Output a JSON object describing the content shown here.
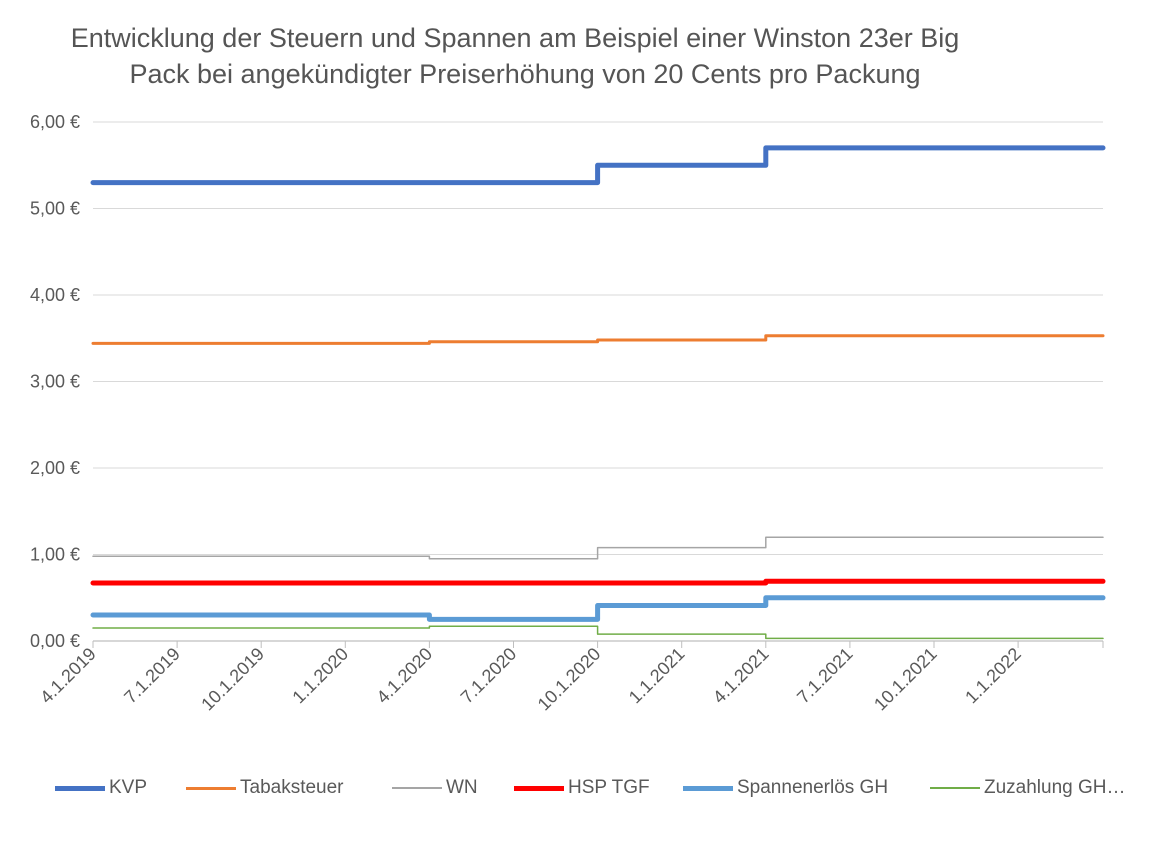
{
  "chart_data": {
    "type": "line",
    "step": true,
    "title_lines": [
      "Entwicklung der Steuern und Spannen am Beispiel einer Winston 23er Big",
      "Pack bei angekündigter Preiserhöhung von 20 Cents pro Packung"
    ],
    "ylim": [
      0,
      6
    ],
    "y_ticks": [
      "0,00 €",
      "1,00 €",
      "2,00 €",
      "3,00 €",
      "4,00 €",
      "5,00 €",
      "6,00 €"
    ],
    "x_ticks": [
      "4.1.2019",
      "7.1.2019",
      "10.1.2019",
      "1.1.2020",
      "4.1.2020",
      "7.1.2020",
      "10.1.2020",
      "1.1.2021",
      "4.1.2021",
      "7.1.2021",
      "10.1.2021",
      "1.1.2022"
    ],
    "grid": true,
    "legend_position": "bottom",
    "series": [
      {
        "name": "KVP",
        "color": "#4472C4",
        "weight": "thick",
        "points": [
          [
            "4.1.2019",
            5.3
          ],
          [
            "10.1.2020",
            5.3
          ],
          [
            "10.1.2020",
            5.5
          ],
          [
            "4.1.2021",
            5.5
          ],
          [
            "4.1.2021",
            5.7
          ],
          [
            "end",
            5.7
          ]
        ]
      },
      {
        "name": "Tabaksteuer",
        "color": "#ED7D31",
        "weight": "medium",
        "points": [
          [
            "4.1.2019",
            3.44
          ],
          [
            "4.1.2020",
            3.44
          ],
          [
            "4.1.2020",
            3.46
          ],
          [
            "10.1.2020",
            3.46
          ],
          [
            "10.1.2020",
            3.48
          ],
          [
            "4.1.2021",
            3.48
          ],
          [
            "4.1.2021",
            3.53
          ],
          [
            "end",
            3.53
          ]
        ]
      },
      {
        "name": "WN",
        "color": "#A5A5A5",
        "weight": "thin",
        "points": [
          [
            "4.1.2019",
            0.98
          ],
          [
            "4.1.2020",
            0.98
          ],
          [
            "4.1.2020",
            0.95
          ],
          [
            "10.1.2020",
            0.95
          ],
          [
            "10.1.2020",
            1.08
          ],
          [
            "4.1.2021",
            1.08
          ],
          [
            "4.1.2021",
            1.2
          ],
          [
            "end",
            1.2
          ]
        ]
      },
      {
        "name": "HSP TGF",
        "color": "#FF0000",
        "weight": "thick",
        "points": [
          [
            "4.1.2019",
            0.67
          ],
          [
            "4.1.2021",
            0.67
          ],
          [
            "4.1.2021",
            0.69
          ],
          [
            "end",
            0.69
          ]
        ]
      },
      {
        "name": "Spannenerlös GH",
        "color": "#5B9BD5",
        "weight": "thick",
        "points": [
          [
            "4.1.2019",
            0.3
          ],
          [
            "4.1.2020",
            0.3
          ],
          [
            "4.1.2020",
            0.25
          ],
          [
            "10.1.2020",
            0.25
          ],
          [
            "10.1.2020",
            0.41
          ],
          [
            "4.1.2021",
            0.41
          ],
          [
            "4.1.2021",
            0.5
          ],
          [
            "end",
            0.5
          ]
        ]
      },
      {
        "name": "Zuzahlung GH…",
        "color": "#70AD47",
        "weight": "thin",
        "points": [
          [
            "4.1.2019",
            0.15
          ],
          [
            "4.1.2020",
            0.15
          ],
          [
            "4.1.2020",
            0.17
          ],
          [
            "10.1.2020",
            0.17
          ],
          [
            "10.1.2020",
            0.08
          ],
          [
            "4.1.2021",
            0.08
          ],
          [
            "4.1.2021",
            0.03
          ],
          [
            "end",
            0.03
          ]
        ]
      }
    ]
  }
}
